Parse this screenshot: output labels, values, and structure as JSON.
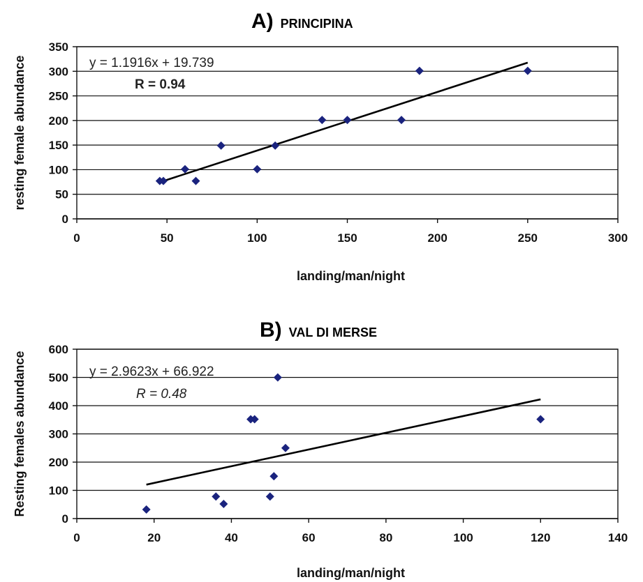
{
  "chart_data": [
    {
      "type": "scatter",
      "title_letter": "A)",
      "title_name": "PRINCIPINA",
      "xlabel": "landing/man/night",
      "ylabel": "resting female abundance",
      "xlim": [
        0,
        300
      ],
      "ylim": [
        0,
        350
      ],
      "xticks": [
        0,
        50,
        100,
        150,
        200,
        250,
        300
      ],
      "yticks": [
        0,
        50,
        100,
        150,
        200,
        250,
        300,
        350
      ],
      "grid": "horizontal",
      "marker_color": "#1a237e",
      "series": [
        {
          "x": [
            46,
            48,
            60,
            66,
            80,
            100,
            110,
            136,
            150,
            180,
            190,
            250
          ],
          "y": [
            77,
            77,
            101,
            77,
            149,
            101,
            149,
            201,
            201,
            201,
            301,
            301
          ]
        }
      ],
      "trendline": {
        "slope": 1.1916,
        "intercept": 19.739,
        "x_range": [
          48,
          250
        ]
      },
      "equation_text": "y = 1.1916x + 19.739",
      "r_text": "R = 0.94",
      "r_style": "bold"
    },
    {
      "type": "scatter",
      "title_letter": "B)",
      "title_name": "VAL DI MERSE",
      "xlabel": "landing/man/night",
      "ylabel": "Resting females  abundance",
      "xlim": [
        0,
        140
      ],
      "ylim": [
        0,
        600
      ],
      "xticks": [
        0,
        20,
        40,
        60,
        80,
        100,
        120,
        140
      ],
      "yticks": [
        0,
        100,
        200,
        300,
        400,
        500,
        600
      ],
      "grid": "horizontal",
      "marker_color": "#1a237e",
      "series": [
        {
          "x": [
            18,
            36,
            38,
            45,
            46,
            50,
            51,
            52,
            54,
            120
          ],
          "y": [
            32,
            78,
            52,
            352,
            352,
            78,
            150,
            500,
            250,
            352
          ]
        }
      ],
      "trendline": {
        "slope": 2.9623,
        "intercept": 66.922,
        "x_range": [
          18,
          120
        ]
      },
      "equation_text": "y = 2.9623x + 66.922",
      "r_text": "R = 0.48",
      "r_style": "italic"
    }
  ]
}
